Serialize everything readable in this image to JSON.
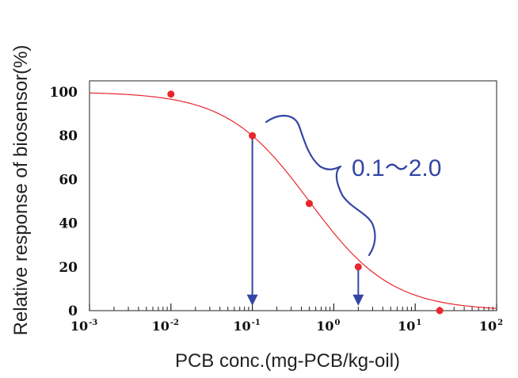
{
  "chart_data": {
    "type": "line",
    "title": "",
    "xlabel": "PCB conc.(mg-PCB/kg-oil)",
    "ylabel": "Relative response of biosensor(%)",
    "xscale": "log",
    "xlim": [
      0.001,
      100
    ],
    "ylim": [
      0,
      100
    ],
    "x_ticks": [
      {
        "value": 0.001,
        "base": "10",
        "exp": "-3"
      },
      {
        "value": 0.01,
        "base": "10",
        "exp": "-2"
      },
      {
        "value": 0.1,
        "base": "10",
        "exp": "-1"
      },
      {
        "value": 1,
        "base": "10",
        "exp": "0"
      },
      {
        "value": 10,
        "base": "10",
        "exp": "1"
      },
      {
        "value": 100,
        "base": "10",
        "exp": "2"
      }
    ],
    "y_ticks": [
      "0",
      "20",
      "40",
      "60",
      "80",
      "100"
    ],
    "grid": false,
    "series": [
      {
        "type": "scatter",
        "color": "#e8262c",
        "points": [
          {
            "x": 0.01,
            "y": 99
          },
          {
            "x": 0.1,
            "y": 80
          },
          {
            "x": 0.5,
            "y": 49
          },
          {
            "x": 2.0,
            "y": 20
          },
          {
            "x": 20,
            "y": 0
          }
        ]
      },
      {
        "type": "fit-curve",
        "color": "#e8262c",
        "ec50": 0.5,
        "hill": 0.86
      }
    ],
    "arrows": [
      {
        "x": 0.1,
        "from_y": 80,
        "to_y": 3,
        "color": "#3346a4"
      },
      {
        "x": 2.0,
        "from_y": 20,
        "to_y": 3,
        "color": "#3346a4"
      }
    ],
    "annotation": {
      "text": "0.1～2.0",
      "color": "#3346a4",
      "shape": "curly-brace"
    }
  }
}
